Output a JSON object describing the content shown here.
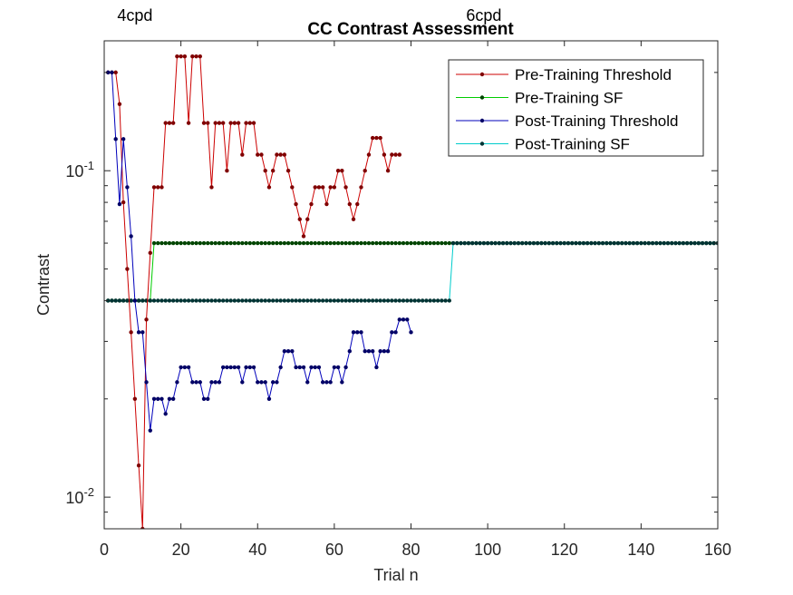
{
  "chart_data": {
    "type": "line",
    "title": "CC Contrast Assessment",
    "xlabel": "Trial n",
    "ylabel": "Contrast",
    "xlim": [
      0,
      160
    ],
    "ylim": [
      0.008,
      0.25
    ],
    "yscale": "log",
    "grid": false,
    "legend_position": "top-right",
    "xticks": [
      0,
      20,
      40,
      60,
      80,
      100,
      120,
      140,
      160
    ],
    "xtick_labels": [
      "0",
      "20",
      "40",
      "60",
      "80",
      "100",
      "120",
      "140",
      "160"
    ],
    "yticks": [
      {
        "value": 0.1,
        "base": "10",
        "exp": "-1"
      },
      {
        "value": 0.01,
        "base": "10",
        "exp": "-2"
      }
    ],
    "annotations": [
      {
        "text": "4cpd",
        "x": 8,
        "y": 0.33
      },
      {
        "text": "6cpd",
        "x": 99,
        "y": 0.33
      }
    ],
    "series": [
      {
        "name": "Pre-Training Threshold",
        "color": "#cc0000",
        "marker": "#800000",
        "x": [
          1,
          2,
          3,
          4,
          5,
          6,
          7,
          8,
          9,
          10,
          11,
          12,
          13,
          14,
          15,
          16,
          17,
          18,
          19,
          20,
          21,
          22,
          23,
          24,
          25,
          26,
          27,
          28,
          29,
          30,
          31,
          32,
          33,
          34,
          35,
          36,
          37,
          38,
          39,
          40,
          41,
          42,
          43,
          44,
          45,
          46,
          47,
          48,
          49,
          50,
          51,
          52,
          53,
          54,
          55,
          56,
          57,
          58,
          59,
          60,
          61,
          62,
          63,
          64,
          65,
          66,
          67,
          68,
          69,
          70,
          71,
          72,
          73,
          74,
          75,
          76,
          77
        ],
        "y": [
          0.2,
          0.2,
          0.2,
          0.16,
          0.08,
          0.05,
          0.032,
          0.02,
          0.0125,
          0.008,
          0.035,
          0.056,
          0.089,
          0.089,
          0.089,
          0.14,
          0.14,
          0.14,
          0.224,
          0.224,
          0.224,
          0.14,
          0.224,
          0.224,
          0.224,
          0.14,
          0.14,
          0.089,
          0.14,
          0.14,
          0.14,
          0.1,
          0.14,
          0.14,
          0.14,
          0.112,
          0.14,
          0.14,
          0.14,
          0.112,
          0.112,
          0.1,
          0.089,
          0.1,
          0.112,
          0.112,
          0.112,
          0.1,
          0.089,
          0.079,
          0.071,
          0.063,
          0.071,
          0.079,
          0.089,
          0.089,
          0.089,
          0.079,
          0.089,
          0.089,
          0.1,
          0.1,
          0.089,
          0.079,
          0.071,
          0.079,
          0.089,
          0.1,
          0.112,
          0.126,
          0.126,
          0.126,
          0.112,
          0.1,
          0.112,
          0.112,
          0.112
        ]
      },
      {
        "name": "Pre-Training SF",
        "color": "#00cc00",
        "marker": "#004400",
        "x": [
          1,
          2,
          3,
          4,
          5,
          6,
          7,
          8,
          9,
          10,
          11,
          12,
          13,
          14,
          15,
          16,
          17,
          18,
          19,
          20,
          21,
          22,
          23,
          24,
          25,
          26,
          27,
          28,
          29,
          30,
          31,
          32,
          33,
          34,
          35,
          36,
          37,
          38,
          39,
          40,
          41,
          42,
          43,
          44,
          45,
          46,
          47,
          48,
          49,
          50,
          51,
          52,
          53,
          54,
          55,
          56,
          57,
          58,
          59,
          60,
          61,
          62,
          63,
          64,
          65,
          66,
          67,
          68,
          69,
          70,
          71,
          72,
          73,
          74,
          75,
          76,
          77,
          78,
          79,
          80,
          81,
          82,
          83,
          84,
          85,
          86,
          87,
          88,
          89,
          90,
          91,
          92,
          93,
          94,
          95,
          96,
          97,
          98,
          99,
          100,
          101,
          102,
          103,
          104,
          105,
          106,
          107,
          108,
          109,
          110,
          111,
          112,
          113,
          114,
          115,
          116,
          117,
          118,
          119,
          120,
          121,
          122,
          123,
          124,
          125,
          126,
          127,
          128,
          129,
          130,
          131,
          132,
          133,
          134,
          135,
          136,
          137,
          138,
          139,
          140,
          141,
          142,
          143,
          144,
          145,
          146,
          147,
          148,
          149,
          150,
          151,
          152,
          153,
          154,
          155,
          156,
          157,
          158,
          159,
          160
        ],
        "y": [
          0.04,
          0.04,
          0.04,
          0.04,
          0.04,
          0.04,
          0.04,
          0.04,
          0.04,
          0.04,
          0.04,
          0.04,
          0.06,
          0.06,
          0.06,
          0.06,
          0.06,
          0.06,
          0.06,
          0.06,
          0.06,
          0.06,
          0.06,
          0.06,
          0.06,
          0.06,
          0.06,
          0.06,
          0.06,
          0.06,
          0.06,
          0.06,
          0.06,
          0.06,
          0.06,
          0.06,
          0.06,
          0.06,
          0.06,
          0.06,
          0.06,
          0.06,
          0.06,
          0.06,
          0.06,
          0.06,
          0.06,
          0.06,
          0.06,
          0.06,
          0.06,
          0.06,
          0.06,
          0.06,
          0.06,
          0.06,
          0.06,
          0.06,
          0.06,
          0.06,
          0.06,
          0.06,
          0.06,
          0.06,
          0.06,
          0.06,
          0.06,
          0.06,
          0.06,
          0.06,
          0.06,
          0.06,
          0.06,
          0.06,
          0.06,
          0.06,
          0.06,
          0.06,
          0.06,
          0.06,
          0.06,
          0.06,
          0.06,
          0.06,
          0.06,
          0.06,
          0.06,
          0.06,
          0.06,
          0.06,
          0.06,
          0.06,
          0.06,
          0.06,
          0.06,
          0.06,
          0.06,
          0.06,
          0.06,
          0.06,
          0.06,
          0.06,
          0.06,
          0.06,
          0.06,
          0.06,
          0.06,
          0.06,
          0.06,
          0.06,
          0.06,
          0.06,
          0.06,
          0.06,
          0.06,
          0.06,
          0.06,
          0.06,
          0.06,
          0.06,
          0.06,
          0.06,
          0.06,
          0.06,
          0.06,
          0.06,
          0.06,
          0.06,
          0.06,
          0.06,
          0.06,
          0.06,
          0.06,
          0.06,
          0.06,
          0.06,
          0.06,
          0.06,
          0.06,
          0.06,
          0.06,
          0.06,
          0.06,
          0.06,
          0.06,
          0.06,
          0.06,
          0.06,
          0.06,
          0.06,
          0.06,
          0.06,
          0.06,
          0.06,
          0.06,
          0.06,
          0.06,
          0.06,
          0.06,
          0.06
        ]
      },
      {
        "name": "Post-Training Threshold",
        "color": "#0000bb",
        "marker": "#000066",
        "x": [
          1,
          2,
          3,
          4,
          5,
          6,
          7,
          8,
          9,
          10,
          11,
          12,
          13,
          14,
          15,
          16,
          17,
          18,
          19,
          20,
          21,
          22,
          23,
          24,
          25,
          26,
          27,
          28,
          29,
          30,
          31,
          32,
          33,
          34,
          35,
          36,
          37,
          38,
          39,
          40,
          41,
          42,
          43,
          44,
          45,
          46,
          47,
          48,
          49,
          50,
          51,
          52,
          53,
          54,
          55,
          56,
          57,
          58,
          59,
          60,
          61,
          62,
          63,
          64,
          65,
          66,
          67,
          68,
          69,
          70,
          71,
          72,
          73,
          74,
          75,
          76,
          77,
          78,
          79,
          80
        ],
        "y": [
          0.2,
          0.2,
          0.125,
          0.079,
          0.125,
          0.089,
          0.063,
          0.04,
          0.032,
          0.032,
          0.0225,
          0.016,
          0.02,
          0.02,
          0.02,
          0.018,
          0.02,
          0.02,
          0.0225,
          0.025,
          0.025,
          0.025,
          0.0225,
          0.0225,
          0.0225,
          0.02,
          0.02,
          0.0225,
          0.0225,
          0.0225,
          0.025,
          0.025,
          0.025,
          0.025,
          0.025,
          0.0225,
          0.025,
          0.025,
          0.025,
          0.0225,
          0.0225,
          0.0225,
          0.02,
          0.0225,
          0.0225,
          0.025,
          0.028,
          0.028,
          0.028,
          0.025,
          0.025,
          0.025,
          0.0225,
          0.025,
          0.025,
          0.025,
          0.0225,
          0.0225,
          0.0225,
          0.025,
          0.025,
          0.0225,
          0.025,
          0.028,
          0.032,
          0.032,
          0.032,
          0.028,
          0.028,
          0.028,
          0.025,
          0.028,
          0.028,
          0.028,
          0.032,
          0.032,
          0.035,
          0.035,
          0.035,
          0.032
        ]
      },
      {
        "name": "Post-Training SF",
        "color": "#00cccc",
        "marker": "#003333",
        "x": [
          1,
          2,
          3,
          4,
          5,
          6,
          7,
          8,
          9,
          10,
          11,
          12,
          13,
          14,
          15,
          16,
          17,
          18,
          19,
          20,
          21,
          22,
          23,
          24,
          25,
          26,
          27,
          28,
          29,
          30,
          31,
          32,
          33,
          34,
          35,
          36,
          37,
          38,
          39,
          40,
          41,
          42,
          43,
          44,
          45,
          46,
          47,
          48,
          49,
          50,
          51,
          52,
          53,
          54,
          55,
          56,
          57,
          58,
          59,
          60,
          61,
          62,
          63,
          64,
          65,
          66,
          67,
          68,
          69,
          70,
          71,
          72,
          73,
          74,
          75,
          76,
          77,
          78,
          79,
          80,
          81,
          82,
          83,
          84,
          85,
          86,
          87,
          88,
          89,
          90,
          91,
          92,
          93,
          94,
          95,
          96,
          97,
          98,
          99,
          100,
          101,
          102,
          103,
          104,
          105,
          106,
          107,
          108,
          109,
          110,
          111,
          112,
          113,
          114,
          115,
          116,
          117,
          118,
          119,
          120,
          121,
          122,
          123,
          124,
          125,
          126,
          127,
          128,
          129,
          130,
          131,
          132,
          133,
          134,
          135,
          136,
          137,
          138,
          139,
          140,
          141,
          142,
          143,
          144,
          145,
          146,
          147,
          148,
          149,
          150,
          151,
          152,
          153,
          154,
          155,
          156,
          157,
          158,
          159,
          160
        ],
        "y": [
          0.04,
          0.04,
          0.04,
          0.04,
          0.04,
          0.04,
          0.04,
          0.04,
          0.04,
          0.04,
          0.04,
          0.04,
          0.04,
          0.04,
          0.04,
          0.04,
          0.04,
          0.04,
          0.04,
          0.04,
          0.04,
          0.04,
          0.04,
          0.04,
          0.04,
          0.04,
          0.04,
          0.04,
          0.04,
          0.04,
          0.04,
          0.04,
          0.04,
          0.04,
          0.04,
          0.04,
          0.04,
          0.04,
          0.04,
          0.04,
          0.04,
          0.04,
          0.04,
          0.04,
          0.04,
          0.04,
          0.04,
          0.04,
          0.04,
          0.04,
          0.04,
          0.04,
          0.04,
          0.04,
          0.04,
          0.04,
          0.04,
          0.04,
          0.04,
          0.04,
          0.04,
          0.04,
          0.04,
          0.04,
          0.04,
          0.04,
          0.04,
          0.04,
          0.04,
          0.04,
          0.04,
          0.04,
          0.04,
          0.04,
          0.04,
          0.04,
          0.04,
          0.04,
          0.04,
          0.04,
          0.04,
          0.04,
          0.04,
          0.04,
          0.04,
          0.04,
          0.04,
          0.04,
          0.04,
          0.04,
          0.06,
          0.06,
          0.06,
          0.06,
          0.06,
          0.06,
          0.06,
          0.06,
          0.06,
          0.06,
          0.06,
          0.06,
          0.06,
          0.06,
          0.06,
          0.06,
          0.06,
          0.06,
          0.06,
          0.06,
          0.06,
          0.06,
          0.06,
          0.06,
          0.06,
          0.06,
          0.06,
          0.06,
          0.06,
          0.06,
          0.06,
          0.06,
          0.06,
          0.06,
          0.06,
          0.06,
          0.06,
          0.06,
          0.06,
          0.06,
          0.06,
          0.06,
          0.06,
          0.06,
          0.06,
          0.06,
          0.06,
          0.06,
          0.06,
          0.06,
          0.06,
          0.06,
          0.06,
          0.06,
          0.06,
          0.06,
          0.06,
          0.06,
          0.06,
          0.06,
          0.06,
          0.06,
          0.06,
          0.06,
          0.06,
          0.06,
          0.06,
          0.06,
          0.06,
          0.06
        ]
      }
    ]
  }
}
